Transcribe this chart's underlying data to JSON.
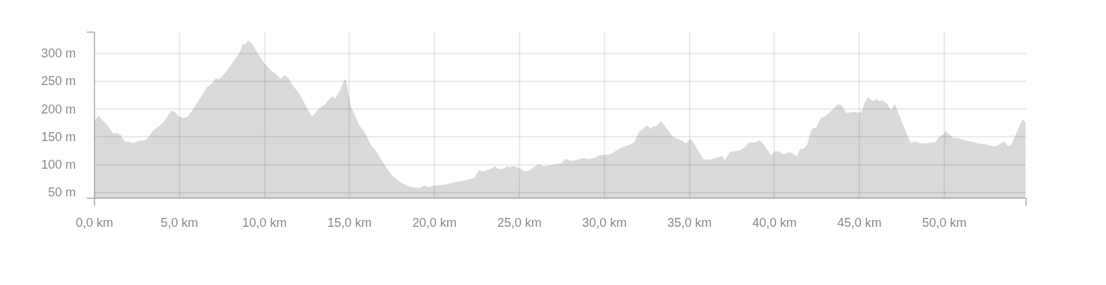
{
  "chart_data": {
    "type": "area",
    "color": "#d9d9d9",
    "grid": true,
    "xlim": [
      0,
      54.8
    ],
    "ylim": [
      40,
      338
    ],
    "xticks": [
      {
        "value": 0,
        "label": "0,0 km"
      },
      {
        "value": 5,
        "label": "5,0 km"
      },
      {
        "value": 10,
        "label": "10,0 km"
      },
      {
        "value": 15,
        "label": "15,0 km"
      },
      {
        "value": 20,
        "label": "20,0 km"
      },
      {
        "value": 25,
        "label": "25,0 km"
      },
      {
        "value": 30,
        "label": "30,0 km"
      },
      {
        "value": 35,
        "label": "35,0 km"
      },
      {
        "value": 40,
        "label": "40,0 km"
      },
      {
        "value": 45,
        "label": "45,0 km"
      },
      {
        "value": 50,
        "label": "50,0 km"
      }
    ],
    "yticks": [
      {
        "value": 50,
        "label": "50 m"
      },
      {
        "value": 100,
        "label": "100 m"
      },
      {
        "value": 150,
        "label": "150 m"
      },
      {
        "value": 200,
        "label": "200 m"
      },
      {
        "value": 250,
        "label": "250 m"
      },
      {
        "value": 300,
        "label": "300 m"
      }
    ],
    "x": [
      0,
      0.25,
      0.46,
      0.71,
      0.85,
      1.09,
      1.32,
      1.53,
      1.8,
      2.07,
      2.28,
      2.62,
      2.96,
      3.14,
      3.44,
      3.78,
      4.05,
      4.32,
      4.53,
      4.67,
      4.94,
      5.21,
      5.46,
      5.76,
      6.23,
      6.64,
      6.92,
      7.12,
      7.33,
      7.46,
      7.8,
      8.21,
      8.55,
      8.73,
      8.89,
      9.03,
      9.28,
      9.58,
      9.99,
      10.19,
      10.46,
      10.74,
      10.94,
      11.19,
      11.42,
      11.62,
      12.02,
      12.42,
      12.62,
      12.8,
      13.03,
      13.23,
      13.57,
      13.78,
      14.02,
      14.12,
      14.39,
      14.59,
      14.7,
      14.82,
      15.07,
      15.27,
      15.61,
      15.92,
      16.29,
      16.49,
      16.83,
      17.17,
      17.51,
      17.85,
      18.19,
      18.67,
      19.1,
      19.42,
      19.62,
      20.03,
      20.5,
      21.11,
      21.79,
      22.34,
      22.61,
      22.88,
      23.29,
      23.56,
      23.76,
      24.1,
      24.24,
      24.44,
      24.65,
      25.05,
      25.33,
      25.6,
      26.11,
      26.41,
      26.96,
      27.5,
      27.74,
      27.97,
      28.31,
      28.72,
      29.12,
      29.46,
      29.66,
      30.34,
      30.74,
      31.01,
      31.55,
      31.76,
      32.03,
      32.3,
      32.5,
      32.7,
      32.91,
      33.04,
      33.31,
      33.51,
      33.99,
      34.32,
      34.53,
      34.8,
      35.07,
      35.27,
      35.81,
      36.01,
      36.35,
      36.69,
      36.96,
      37.09,
      37.36,
      37.57,
      37.91,
      38.24,
      38.51,
      38.85,
      39.12,
      39.32,
      39.8,
      40.0,
      40.2,
      40.54,
      40.88,
      41.08,
      41.31,
      41.51,
      41.72,
      41.92,
      42.13,
      42.24,
      42.47,
      42.73,
      42.94,
      43.14,
      43.41,
      43.73,
      43.96,
      44.23,
      44.43,
      44.77,
      44.97,
      45.14,
      45.31,
      45.49,
      45.79,
      46.03,
      46.17,
      46.33,
      46.6,
      46.87,
      47.07,
      47.55,
      48.02,
      48.29,
      48.5,
      48.83,
      49.11,
      49.31,
      49.44,
      49.72,
      49.92,
      50.08,
      50.26,
      50.53,
      50.8,
      51.21,
      51.68,
      52.02,
      52.43,
      52.83,
      53.04,
      53.51,
      53.72,
      53.92,
      54.59,
      54.77
    ],
    "values": [
      180,
      188,
      180,
      173,
      167,
      156,
      157,
      154,
      141,
      141,
      139,
      143,
      144,
      148,
      161,
      169,
      176,
      188,
      197,
      196,
      187,
      184,
      186,
      198,
      220,
      240,
      246,
      255,
      254,
      257,
      269,
      287,
      302,
      317,
      316,
      323,
      317,
      301,
      282,
      276,
      268,
      261,
      254,
      261,
      255,
      244,
      229,
      207,
      195,
      186,
      195,
      201,
      209,
      217,
      223,
      218,
      230,
      244,
      254,
      250,
      205,
      192,
      169,
      157,
      134,
      128,
      111,
      95,
      81,
      72,
      65,
      60,
      58,
      63,
      60,
      63,
      64,
      68,
      72,
      76,
      90,
      88,
      92,
      97,
      92,
      93,
      97,
      96,
      98,
      93,
      88,
      90,
      101,
      97,
      100,
      103,
      111,
      107,
      108,
      112,
      110,
      113,
      117,
      119,
      126,
      131,
      137,
      141,
      159,
      165,
      171,
      165,
      169,
      169,
      178,
      171,
      151,
      146,
      144,
      138,
      147,
      138,
      110,
      109,
      110,
      114,
      115,
      108,
      122,
      124,
      125,
      131,
      140,
      140,
      144,
      138,
      117,
      124,
      124,
      119,
      123,
      120,
      115,
      128,
      129,
      136,
      159,
      165,
      167,
      184,
      186,
      191,
      199,
      209,
      206,
      193,
      194,
      195,
      193,
      196,
      211,
      221,
      214,
      218,
      214,
      216,
      210,
      198,
      210,
      173,
      139,
      142,
      139,
      138,
      139,
      141,
      140,
      151,
      154,
      161,
      155,
      148,
      148,
      144,
      141,
      138,
      137,
      133,
      133,
      142,
      134,
      135,
      182,
      176
    ]
  }
}
